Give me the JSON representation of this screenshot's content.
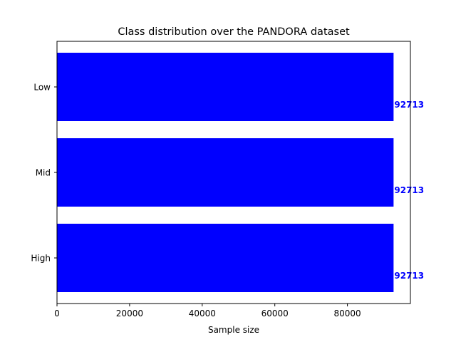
{
  "chart_data": {
    "type": "bar",
    "orientation": "horizontal",
    "title": "Class distribution over the PANDORA dataset",
    "xlabel": "Sample size",
    "ylabel": "",
    "categories": [
      "Low",
      "Mid",
      "High"
    ],
    "values": [
      92713,
      92713,
      92713
    ],
    "data_labels": [
      "92713",
      "92713",
      "92713"
    ],
    "xlim": [
      0,
      97349
    ],
    "xticks": [
      0,
      20000,
      40000,
      60000,
      80000
    ],
    "xtick_labels": [
      "0",
      "20000",
      "40000",
      "60000",
      "80000"
    ],
    "bar_color": "#0000ff",
    "label_color": "#0000ff",
    "grid": false,
    "legend": "none"
  }
}
